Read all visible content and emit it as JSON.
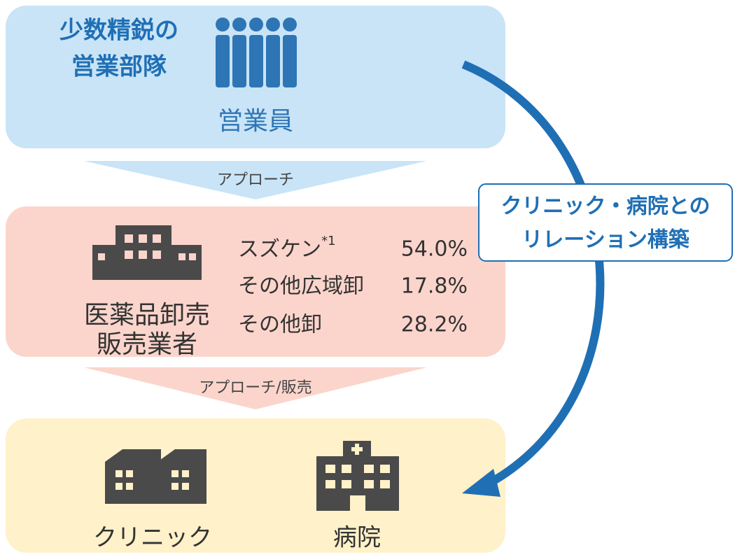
{
  "sales": {
    "title": [
      "少数精鋭の",
      "営業部隊"
    ],
    "label": "営業員"
  },
  "arrows": [
    "アプローチ",
    "アプローチ/販売"
  ],
  "wholesalers": {
    "label": [
      "医薬品卸売",
      "販売業者"
    ],
    "items": [
      {
        "name": "スズケン",
        "note": "*1",
        "share": "54.0%"
      },
      {
        "name": "その他広域卸",
        "share": "17.8%"
      },
      {
        "name": "その他卸",
        "share": "28.2%"
      }
    ]
  },
  "customers": [
    "クリニック",
    "病院"
  ],
  "relation": [
    "クリニック・病院との",
    "リレーション構築"
  ]
}
